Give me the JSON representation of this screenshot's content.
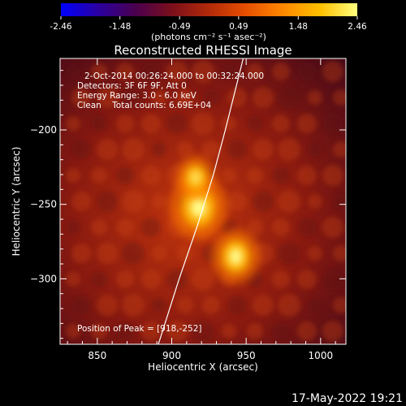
{
  "chart_data": {
    "type": "heatmap",
    "title": "Reconstructed RHESSI Image",
    "xlabel": "Heliocentric X (arcsec)",
    "ylabel": "Heliocentric Y (arcsec)",
    "xlim": [
      825,
      1017
    ],
    "ylim": [
      -344,
      -152
    ],
    "xticks": [
      850,
      900,
      950,
      1000
    ],
    "yticks": [
      -200,
      -250,
      -300
    ],
    "grid": false,
    "colorbar": {
      "position": "top",
      "ticks": [
        -2.46,
        -1.48,
        -0.49,
        0.49,
        1.48,
        2.46
      ],
      "range": [
        -2.46,
        2.46
      ],
      "unit_label": "(photons cm⁻² s⁻¹ asec⁻²)",
      "colormap": [
        "#0000ff",
        "#2a00a0",
        "#4a0050",
        "#7a0f1a",
        "#b32a0a",
        "#e64f00",
        "#ff8800",
        "#ffc000",
        "#ffff80"
      ]
    },
    "info_lines": [
      "2-Oct-2014 00:26:24.000 to 00:32:24.000",
      "Detectors: 3F 6F 9F, Att 0",
      "Energy Range: 3.0 - 6.0 keV",
      "Clean    Total counts: 6.69E+04"
    ],
    "peak_label": "Position of Peak = [918,-252]",
    "sources": [
      {
        "x": 918,
        "y": -252,
        "intensity": 2.46
      },
      {
        "x": 943,
        "y": -285,
        "intensity": 2.0
      },
      {
        "x": 916,
        "y": -232,
        "intensity": 1.5
      }
    ],
    "limb_curve": [
      [
        891,
        -344
      ],
      [
        905,
        -300
      ],
      [
        917,
        -265
      ],
      [
        928,
        -230
      ],
      [
        936,
        -200
      ],
      [
        944,
        -168
      ],
      [
        948,
        -152
      ]
    ],
    "limb_color": "#ffffff"
  },
  "footer_date": "17-May-2022 19:21"
}
